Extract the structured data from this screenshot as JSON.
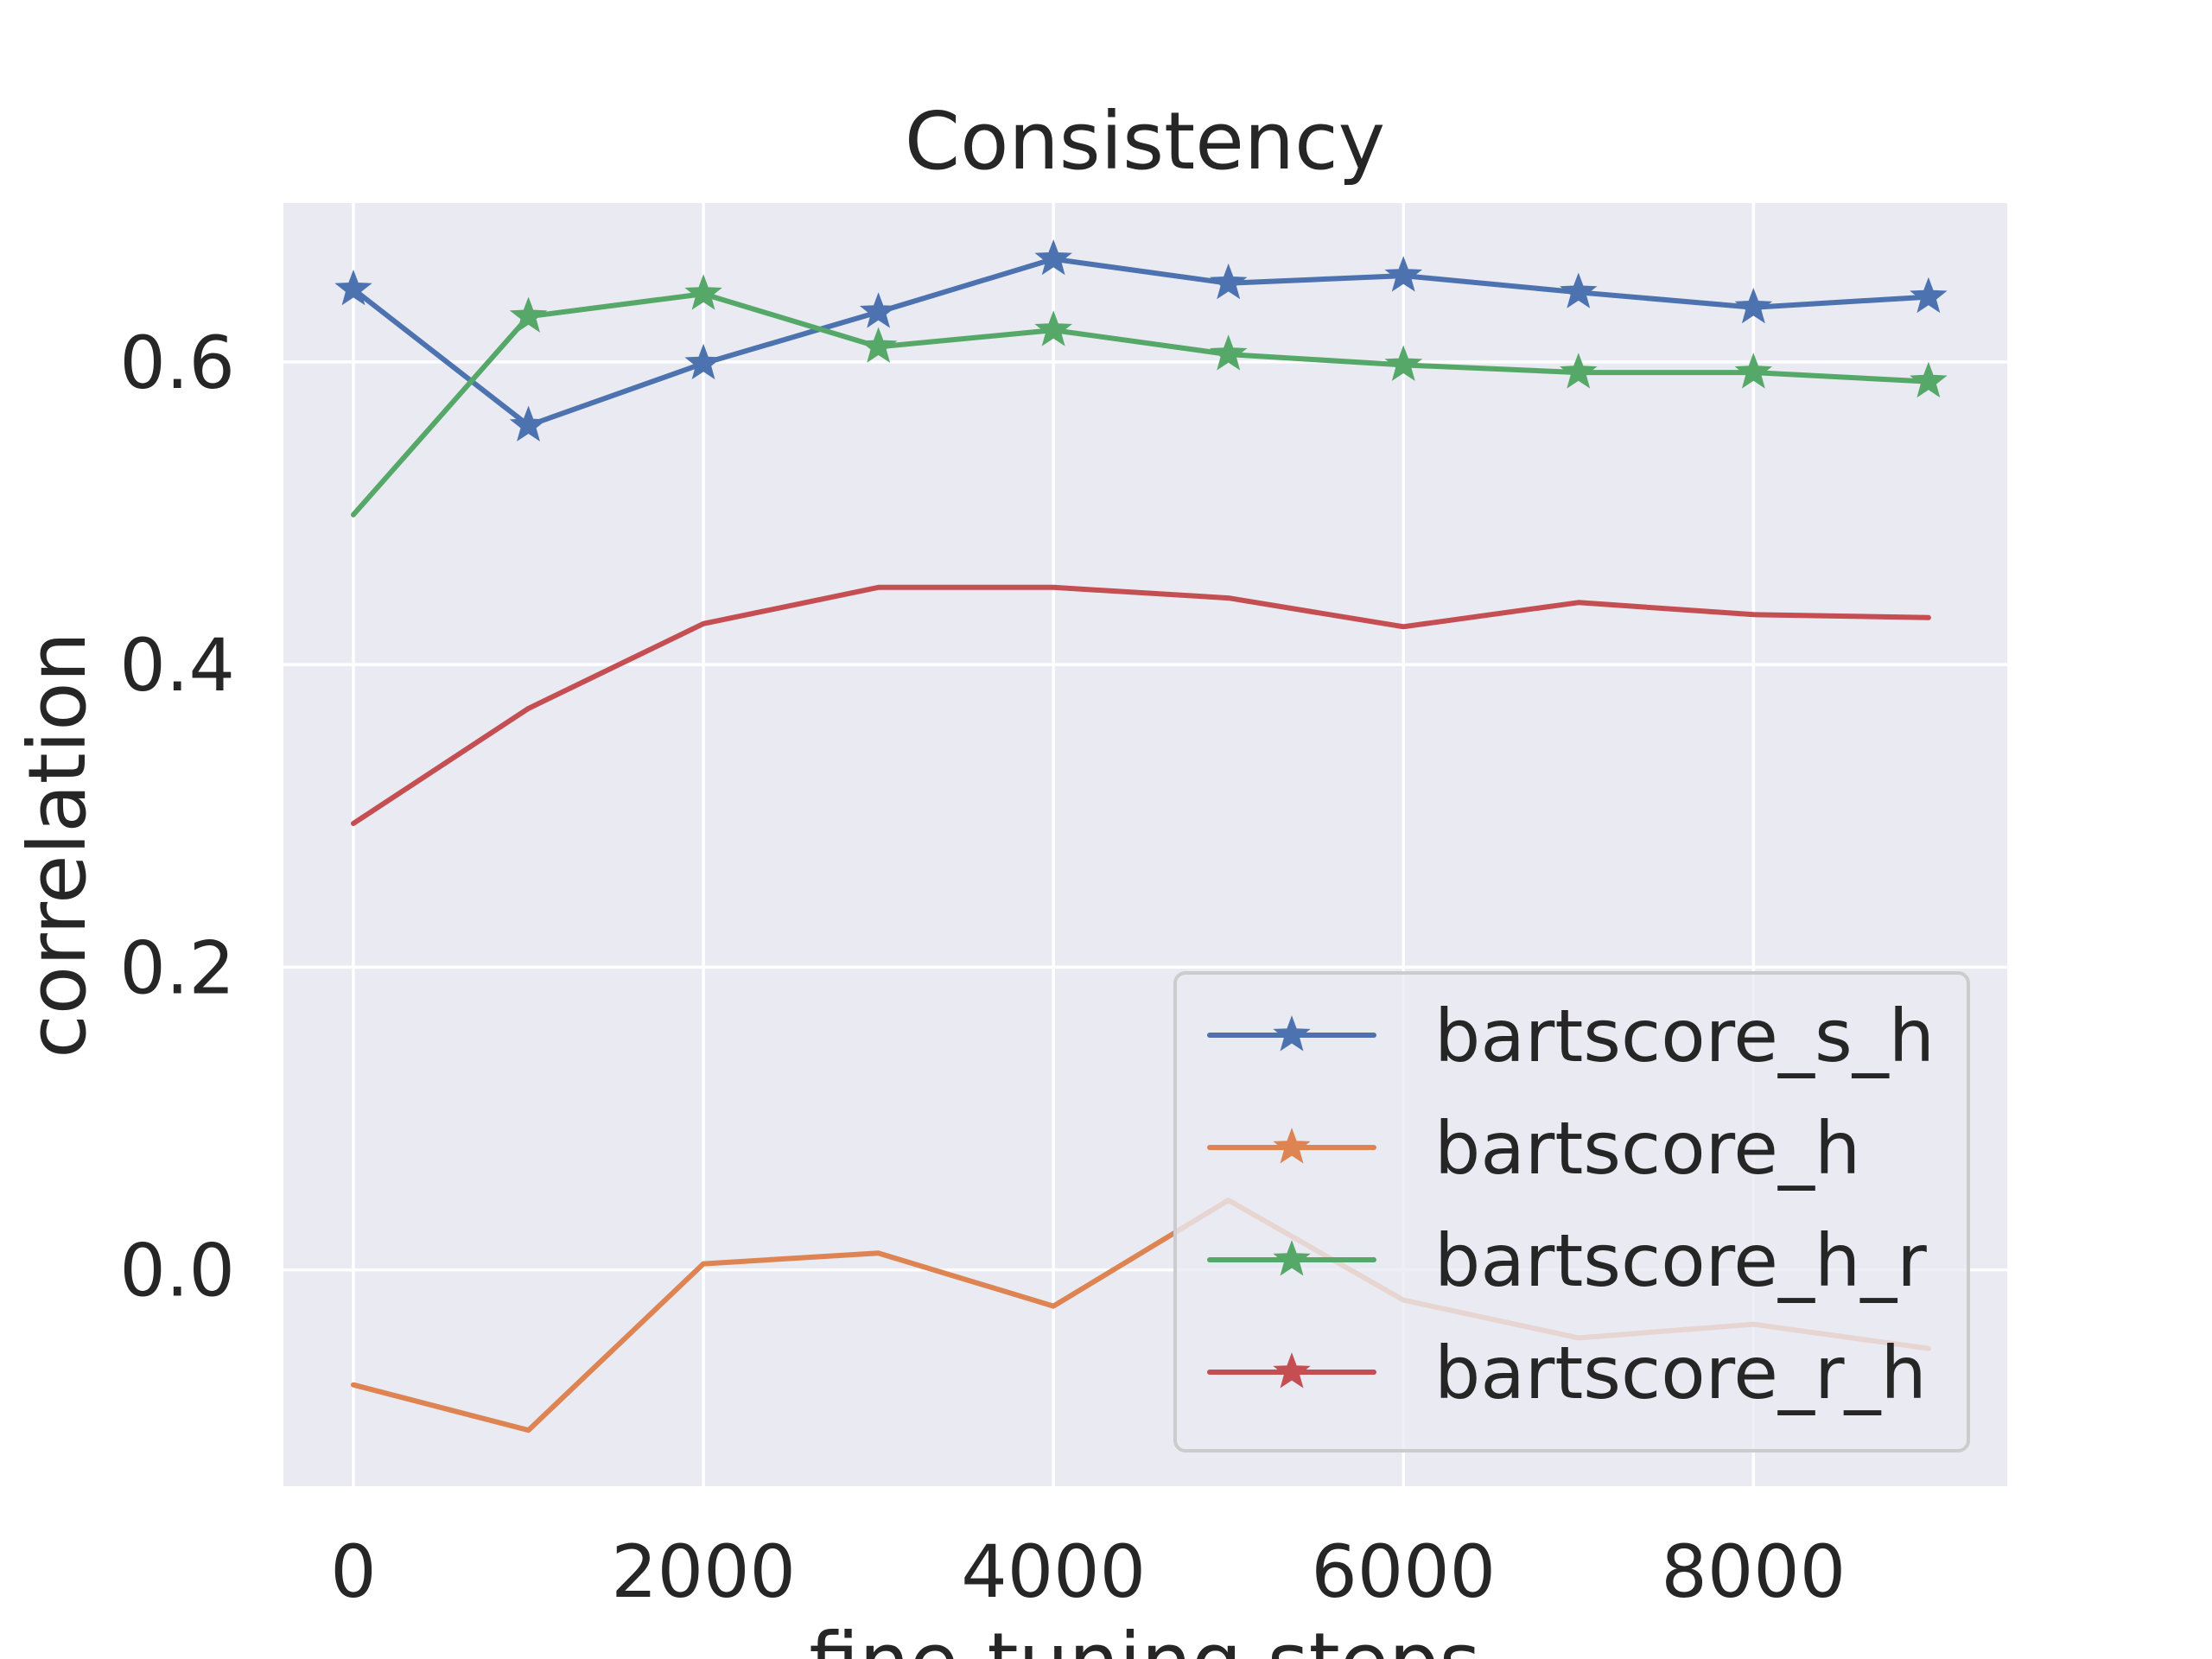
{
  "chart_data": {
    "type": "line",
    "title": "Consistency",
    "xlabel": "fine-tuning steps",
    "ylabel": "correlation",
    "x": [
      0,
      1000,
      2000,
      3000,
      4000,
      5000,
      6000,
      7000,
      8000,
      9000
    ],
    "xlim": [
      -400,
      9450
    ],
    "ylim": [
      -0.143,
      0.705
    ],
    "xticks": [
      0,
      2000,
      4000,
      6000,
      8000
    ],
    "xtick_labels": [
      "0",
      "2000",
      "4000",
      "6000",
      "8000"
    ],
    "yticks": [
      0.0,
      0.2,
      0.4,
      0.6
    ],
    "ytick_labels": [
      "0.0",
      "0.2",
      "0.4",
      "0.6"
    ],
    "grid": true,
    "legend_position": "lower right",
    "series": [
      {
        "name": "bartscore_s_h",
        "color": "#4c72b0",
        "marker": "star",
        "values": [
          0.648,
          0.558,
          0.599,
          0.633,
          0.668,
          0.652,
          0.657,
          0.646,
          0.636,
          0.643
        ],
        "markers_on": [
          0,
          1,
          2,
          3,
          4,
          5,
          6,
          7,
          8,
          9
        ]
      },
      {
        "name": "bartscore_h",
        "color": "#dd8452",
        "marker": "star",
        "values": [
          -0.076,
          -0.106,
          0.004,
          0.011,
          -0.024,
          0.046,
          -0.02,
          -0.045,
          -0.036,
          -0.052
        ],
        "markers_on": []
      },
      {
        "name": "bartscore_h_r",
        "color": "#55a868",
        "marker": "star",
        "values": [
          0.499,
          0.63,
          0.645,
          0.61,
          0.621,
          0.605,
          0.598,
          0.593,
          0.593,
          0.587
        ],
        "markers_on": [
          1,
          2,
          3,
          4,
          5,
          6,
          7,
          8,
          9
        ]
      },
      {
        "name": "bartscore_r_h",
        "color": "#c44e52",
        "marker": "star",
        "values": [
          0.295,
          0.371,
          0.427,
          0.451,
          0.451,
          0.444,
          0.425,
          0.441,
          0.433,
          0.431
        ],
        "markers_on": []
      }
    ]
  }
}
